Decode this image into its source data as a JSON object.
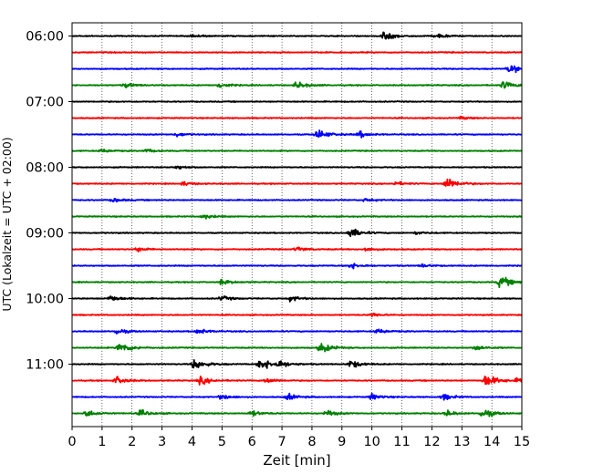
{
  "chart_data": {
    "type": "line",
    "title": "",
    "xlabel": "Zeit  [min]",
    "ylabel": "UTC (Lokalzeit = UTC + 02:00)",
    "xlim": [
      0,
      15
    ],
    "x_ticks": [
      "0",
      "1",
      "2",
      "3",
      "4",
      "5",
      "6",
      "7",
      "8",
      "9",
      "10",
      "11",
      "12",
      "13",
      "14",
      "15"
    ],
    "y_tick_labels": [
      "06:00",
      "07:00",
      "08:00",
      "09:00",
      "10:00",
      "11:00"
    ],
    "grid": "vertical dotted",
    "series_colors": [
      "#000000",
      "#ff0000",
      "#0000ff",
      "#008000"
    ],
    "row_interval_minutes": 15,
    "rows": [
      {
        "start": "06:00",
        "color": "#000000",
        "events": [
          {
            "t": 4.0,
            "a": 0.25
          },
          {
            "t": 10.4,
            "a": 0.75
          },
          {
            "t": 12.2,
            "a": 0.35
          }
        ]
      },
      {
        "start": "06:15",
        "color": "#ff0000",
        "events": []
      },
      {
        "start": "06:30",
        "color": "#0000ff",
        "events": [
          {
            "t": 14.6,
            "a": 0.7
          }
        ]
      },
      {
        "start": "06:45",
        "color": "#008000",
        "events": [
          {
            "t": 1.8,
            "a": 0.35
          },
          {
            "t": 4.9,
            "a": 0.45
          },
          {
            "t": 7.5,
            "a": 0.55
          },
          {
            "t": 14.4,
            "a": 0.6
          }
        ]
      },
      {
        "start": "07:00",
        "color": "#000000",
        "events": []
      },
      {
        "start": "07:15",
        "color": "#ff0000",
        "events": [
          {
            "t": 13.0,
            "a": 0.2
          }
        ]
      },
      {
        "start": "07:30",
        "color": "#0000ff",
        "events": [
          {
            "t": 3.5,
            "a": 0.3
          },
          {
            "t": 8.2,
            "a": 0.75
          },
          {
            "t": 9.6,
            "a": 0.45
          }
        ]
      },
      {
        "start": "07:45",
        "color": "#008000",
        "events": [
          {
            "t": 1.0,
            "a": 0.25
          },
          {
            "t": 2.5,
            "a": 0.25
          }
        ]
      },
      {
        "start": "08:00",
        "color": "#000000",
        "events": [
          {
            "t": 3.5,
            "a": 0.3
          }
        ]
      },
      {
        "start": "08:15",
        "color": "#ff0000",
        "events": [
          {
            "t": 3.7,
            "a": 0.3
          },
          {
            "t": 10.8,
            "a": 0.3
          },
          {
            "t": 12.5,
            "a": 0.9
          }
        ]
      },
      {
        "start": "08:30",
        "color": "#0000ff",
        "events": [
          {
            "t": 1.4,
            "a": 0.3
          },
          {
            "t": 9.8,
            "a": 0.25
          }
        ]
      },
      {
        "start": "08:45",
        "color": "#008000",
        "events": [
          {
            "t": 4.4,
            "a": 0.35
          }
        ]
      },
      {
        "start": "09:00",
        "color": "#000000",
        "events": [
          {
            "t": 9.3,
            "a": 0.75
          },
          {
            "t": 11.5,
            "a": 0.2
          }
        ]
      },
      {
        "start": "09:15",
        "color": "#ff0000",
        "events": [
          {
            "t": 2.2,
            "a": 0.3
          },
          {
            "t": 7.5,
            "a": 0.35
          },
          {
            "t": 9.8,
            "a": 0.3
          }
        ]
      },
      {
        "start": "09:30",
        "color": "#0000ff",
        "events": [
          {
            "t": 9.3,
            "a": 0.45
          },
          {
            "t": 11.7,
            "a": 0.25
          }
        ]
      },
      {
        "start": "09:45",
        "color": "#008000",
        "events": [
          {
            "t": 5.0,
            "a": 0.4
          },
          {
            "t": 14.3,
            "a": 0.85
          }
        ]
      },
      {
        "start": "10:00",
        "color": "#000000",
        "events": [
          {
            "t": 1.3,
            "a": 0.45
          },
          {
            "t": 5.0,
            "a": 0.35
          },
          {
            "t": 7.3,
            "a": 0.4
          }
        ]
      },
      {
        "start": "10:15",
        "color": "#ff0000",
        "events": [
          {
            "t": 10.0,
            "a": 0.3
          }
        ]
      },
      {
        "start": "10:30",
        "color": "#0000ff",
        "events": [
          {
            "t": 1.5,
            "a": 0.45
          },
          {
            "t": 4.2,
            "a": 0.45
          },
          {
            "t": 10.2,
            "a": 0.35
          }
        ]
      },
      {
        "start": "10:45",
        "color": "#008000",
        "events": [
          {
            "t": 1.6,
            "a": 0.85
          },
          {
            "t": 8.3,
            "a": 0.75
          },
          {
            "t": 13.5,
            "a": 0.4
          }
        ]
      },
      {
        "start": "11:00",
        "color": "#000000",
        "events": [
          {
            "t": 4.1,
            "a": 0.8
          },
          {
            "t": 6.3,
            "a": 0.9
          },
          {
            "t": 6.9,
            "a": 0.5
          },
          {
            "t": 9.3,
            "a": 0.6
          }
        ]
      },
      {
        "start": "11:15",
        "color": "#ff0000",
        "events": [
          {
            "t": 1.5,
            "a": 0.55
          },
          {
            "t": 4.3,
            "a": 0.55
          },
          {
            "t": 6.5,
            "a": 0.4
          },
          {
            "t": 13.8,
            "a": 0.95
          },
          {
            "t": 14.9,
            "a": 0.4
          }
        ]
      },
      {
        "start": "11:30",
        "color": "#0000ff",
        "events": [
          {
            "t": 5.0,
            "a": 0.4
          },
          {
            "t": 7.2,
            "a": 0.45
          },
          {
            "t": 10.0,
            "a": 0.45
          },
          {
            "t": 12.4,
            "a": 0.45
          }
        ]
      },
      {
        "start": "11:45",
        "color": "#008000",
        "events": [
          {
            "t": 0.5,
            "a": 0.5
          },
          {
            "t": 2.3,
            "a": 0.45
          },
          {
            "t": 6.0,
            "a": 0.4
          },
          {
            "t": 8.5,
            "a": 0.45
          },
          {
            "t": 12.5,
            "a": 0.45
          },
          {
            "t": 13.7,
            "a": 0.7
          }
        ]
      }
    ]
  }
}
